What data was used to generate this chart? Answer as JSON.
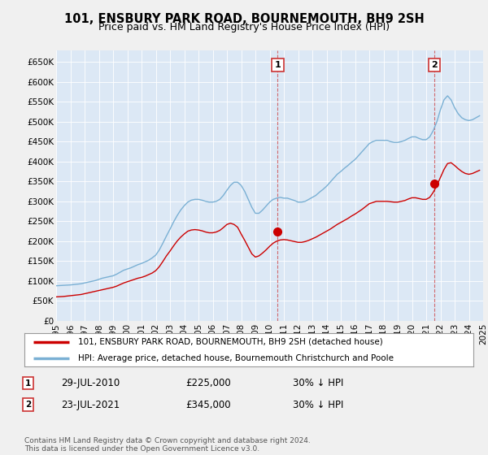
{
  "title": "101, ENSBURY PARK ROAD, BOURNEMOUTH, BH9 2SH",
  "subtitle": "Price paid vs. HM Land Registry's House Price Index (HPI)",
  "background_color": "#f0f0f0",
  "plot_bg_color": "#dce8f5",
  "ylim": [
    0,
    680000
  ],
  "yticks": [
    0,
    50000,
    100000,
    150000,
    200000,
    250000,
    300000,
    350000,
    400000,
    450000,
    500000,
    550000,
    600000,
    650000
  ],
  "sale1": {
    "date_label": "29-JUL-2010",
    "price": 225000,
    "hpi_change": "30% ↓ HPI",
    "x_year": 2010.57,
    "label": "1"
  },
  "sale2": {
    "date_label": "23-JUL-2021",
    "price": 345000,
    "hpi_change": "30% ↓ HPI",
    "x_year": 2021.57,
    "label": "2"
  },
  "legend_line1": "101, ENSBURY PARK ROAD, BOURNEMOUTH, BH9 2SH (detached house)",
  "legend_line2": "HPI: Average price, detached house, Bournemouth Christchurch and Poole",
  "footer": "Contains HM Land Registry data © Crown copyright and database right 2024.\nThis data is licensed under the Open Government Licence v3.0.",
  "line_color_red": "#cc0000",
  "line_color_blue": "#7ab0d4",
  "xlim": [
    1995,
    2025
  ],
  "hpi_data": {
    "years": [
      1995,
      1995.25,
      1995.5,
      1995.75,
      1996,
      1996.25,
      1996.5,
      1996.75,
      1997,
      1997.25,
      1997.5,
      1997.75,
      1998,
      1998.25,
      1998.5,
      1998.75,
      1999,
      1999.25,
      1999.5,
      1999.75,
      2000,
      2000.25,
      2000.5,
      2000.75,
      2001,
      2001.25,
      2001.5,
      2001.75,
      2002,
      2002.25,
      2002.5,
      2002.75,
      2003,
      2003.25,
      2003.5,
      2003.75,
      2004,
      2004.25,
      2004.5,
      2004.75,
      2005,
      2005.25,
      2005.5,
      2005.75,
      2006,
      2006.25,
      2006.5,
      2006.75,
      2007,
      2007.25,
      2007.5,
      2007.75,
      2008,
      2008.25,
      2008.5,
      2008.75,
      2009,
      2009.25,
      2009.5,
      2009.75,
      2010,
      2010.25,
      2010.5,
      2010.75,
      2011,
      2011.25,
      2011.5,
      2011.75,
      2012,
      2012.25,
      2012.5,
      2012.75,
      2013,
      2013.25,
      2013.5,
      2013.75,
      2014,
      2014.25,
      2014.5,
      2014.75,
      2015,
      2015.25,
      2015.5,
      2015.75,
      2016,
      2016.25,
      2016.5,
      2016.75,
      2017,
      2017.25,
      2017.5,
      2017.75,
      2018,
      2018.25,
      2018.5,
      2018.75,
      2019,
      2019.25,
      2019.5,
      2019.75,
      2020,
      2020.25,
      2020.5,
      2020.75,
      2021,
      2021.25,
      2021.5,
      2021.75,
      2022,
      2022.25,
      2022.5,
      2022.75,
      2023,
      2023.25,
      2023.5,
      2023.75,
      2024,
      2024.25,
      2024.5,
      2024.75
    ],
    "values": [
      88000,
      88500,
      89000,
      89500,
      90000,
      91000,
      92000,
      93000,
      95000,
      97000,
      99000,
      101000,
      104000,
      107000,
      109000,
      111000,
      113000,
      117000,
      122000,
      127000,
      130000,
      133000,
      137000,
      141000,
      144000,
      148000,
      152000,
      158000,
      165000,
      178000,
      195000,
      213000,
      230000,
      248000,
      264000,
      278000,
      289000,
      298000,
      303000,
      305000,
      305000,
      303000,
      300000,
      298000,
      298000,
      300000,
      305000,
      315000,
      328000,
      340000,
      348000,
      348000,
      340000,
      325000,
      305000,
      285000,
      270000,
      270000,
      278000,
      288000,
      298000,
      305000,
      308000,
      310000,
      308000,
      308000,
      305000,
      302000,
      298000,
      298000,
      300000,
      305000,
      310000,
      315000,
      323000,
      330000,
      338000,
      348000,
      358000,
      368000,
      375000,
      383000,
      390000,
      398000,
      405000,
      415000,
      425000,
      435000,
      445000,
      450000,
      453000,
      453000,
      453000,
      453000,
      450000,
      448000,
      448000,
      450000,
      453000,
      458000,
      462000,
      462000,
      458000,
      455000,
      455000,
      462000,
      478000,
      500000,
      530000,
      555000,
      565000,
      555000,
      535000,
      520000,
      510000,
      505000,
      503000,
      505000,
      510000,
      515000
    ]
  },
  "price_data": {
    "years": [
      1995,
      1995.25,
      1995.5,
      1995.75,
      1996,
      1996.25,
      1996.5,
      1996.75,
      1997,
      1997.25,
      1997.5,
      1997.75,
      1998,
      1998.25,
      1998.5,
      1998.75,
      1999,
      1999.25,
      1999.5,
      1999.75,
      2000,
      2000.25,
      2000.5,
      2000.75,
      2001,
      2001.25,
      2001.5,
      2001.75,
      2002,
      2002.25,
      2002.5,
      2002.75,
      2003,
      2003.25,
      2003.5,
      2003.75,
      2004,
      2004.25,
      2004.5,
      2004.75,
      2005,
      2005.25,
      2005.5,
      2005.75,
      2006,
      2006.25,
      2006.5,
      2006.75,
      2007,
      2007.25,
      2007.5,
      2007.75,
      2008,
      2008.25,
      2008.5,
      2008.75,
      2009,
      2009.25,
      2009.5,
      2009.75,
      2010,
      2010.25,
      2010.5,
      2010.75,
      2011,
      2011.25,
      2011.5,
      2011.75,
      2012,
      2012.25,
      2012.5,
      2012.75,
      2013,
      2013.25,
      2013.5,
      2013.75,
      2014,
      2014.25,
      2014.5,
      2014.75,
      2015,
      2015.25,
      2015.5,
      2015.75,
      2016,
      2016.25,
      2016.5,
      2016.75,
      2017,
      2017.25,
      2017.5,
      2017.75,
      2018,
      2018.25,
      2018.5,
      2018.75,
      2019,
      2019.25,
      2019.5,
      2019.75,
      2020,
      2020.25,
      2020.5,
      2020.75,
      2021,
      2021.25,
      2021.5,
      2021.75,
      2022,
      2022.25,
      2022.5,
      2022.75,
      2023,
      2023.25,
      2023.5,
      2023.75,
      2024,
      2024.25,
      2024.5,
      2024.75
    ],
    "values": [
      60000,
      60500,
      61000,
      62000,
      63000,
      64000,
      65000,
      66000,
      68000,
      70000,
      72000,
      74000,
      76000,
      78000,
      80000,
      82000,
      84000,
      87000,
      91000,
      95000,
      98000,
      101000,
      104000,
      107000,
      109000,
      112000,
      116000,
      120000,
      126000,
      136000,
      149000,
      163000,
      175000,
      188000,
      200000,
      210000,
      218000,
      225000,
      228000,
      229000,
      228000,
      226000,
      223000,
      221000,
      221000,
      223000,
      227000,
      234000,
      242000,
      245000,
      242000,
      235000,
      218000,
      202000,
      185000,
      168000,
      160000,
      163000,
      170000,
      178000,
      187000,
      195000,
      200000,
      203000,
      204000,
      203000,
      201000,
      199000,
      197000,
      197000,
      199000,
      202000,
      206000,
      210000,
      215000,
      220000,
      225000,
      230000,
      236000,
      242000,
      247000,
      252000,
      257000,
      263000,
      268000,
      274000,
      280000,
      287000,
      294000,
      297000,
      300000,
      300000,
      300000,
      300000,
      299000,
      298000,
      298000,
      300000,
      302000,
      306000,
      309000,
      309000,
      307000,
      305000,
      305000,
      310000,
      323000,
      340000,
      360000,
      380000,
      395000,
      397000,
      390000,
      382000,
      375000,
      370000,
      368000,
      370000,
      374000,
      378000
    ]
  }
}
